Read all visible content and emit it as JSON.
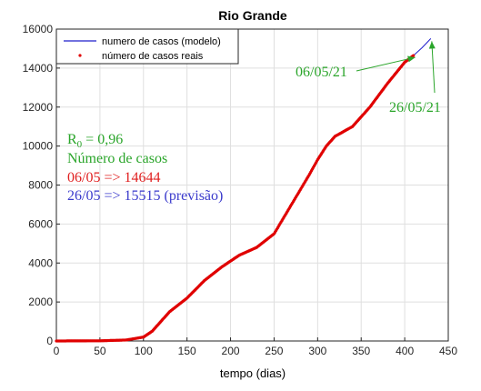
{
  "chart_data": {
    "type": "line",
    "title": "Rio Grande",
    "xlabel": "tempo (dias)",
    "ylabel": "",
    "xlim": [
      0,
      450
    ],
    "ylim": [
      0,
      16000
    ],
    "x_ticks": [
      0,
      50,
      100,
      150,
      200,
      250,
      300,
      350,
      400,
      450
    ],
    "y_ticks": [
      0,
      2000,
      4000,
      6000,
      8000,
      10000,
      12000,
      14000,
      16000
    ],
    "x_tick_labels": [
      "0",
      "50",
      "100",
      "150",
      "200",
      "250",
      "300",
      "350",
      "400",
      "450"
    ],
    "y_tick_labels": [
      "0",
      "2000",
      "4000",
      "6000",
      "8000",
      "10000",
      "12000",
      "14000",
      "16000"
    ],
    "grid": true,
    "legend_position": "top-left",
    "legend": [
      {
        "label": "numero de casos (modelo)",
        "color": "#1f1fcc",
        "marker": "line"
      },
      {
        "label": "número de casos reais",
        "color": "#e00000",
        "marker": "dot"
      }
    ],
    "series": [
      {
        "name": "numero de casos (modelo)",
        "color": "#1f1fcc",
        "x": [
          0,
          50,
          80,
          100,
          110,
          120,
          130,
          150,
          170,
          190,
          210,
          230,
          250,
          270,
          290,
          300,
          310,
          320,
          340,
          360,
          380,
          400,
          410,
          420,
          430
        ],
        "y": [
          0,
          10,
          50,
          200,
          500,
          1000,
          1500,
          2200,
          3100,
          3800,
          4400,
          4800,
          5500,
          7000,
          8500,
          9300,
          10000,
          10500,
          11000,
          12000,
          13200,
          14300,
          14644,
          15050,
          15515
        ]
      },
      {
        "name": "número de casos reais",
        "color": "#e00000",
        "x": [
          0,
          50,
          80,
          100,
          110,
          120,
          130,
          150,
          170,
          190,
          210,
          230,
          250,
          270,
          290,
          300,
          310,
          320,
          340,
          360,
          380,
          400,
          410
        ],
        "y": [
          0,
          10,
          50,
          200,
          500,
          1000,
          1500,
          2200,
          3100,
          3800,
          4400,
          4800,
          5500,
          7000,
          8500,
          9300,
          10000,
          10500,
          11000,
          12000,
          13200,
          14300,
          14644
        ]
      }
    ],
    "annotations": [
      {
        "text": "06/05/21",
        "color": "#2aa52a",
        "points_to": {
          "x": 410,
          "y": 14644
        }
      },
      {
        "text": "26/05/21",
        "color": "#2aa52a",
        "points_to": {
          "x": 430,
          "y": 15515
        }
      }
    ],
    "info_lines": [
      {
        "text": "R",
        "sub": "0",
        "rest": " = 0,96",
        "color": "#2aa52a"
      },
      {
        "text": "Número de casos",
        "color": "#2aa52a"
      },
      {
        "text": "06/05 => 14644",
        "color": "#e02020"
      },
      {
        "text": "26/05 => 15515 (previsão)",
        "color": "#3a3acc"
      }
    ]
  }
}
